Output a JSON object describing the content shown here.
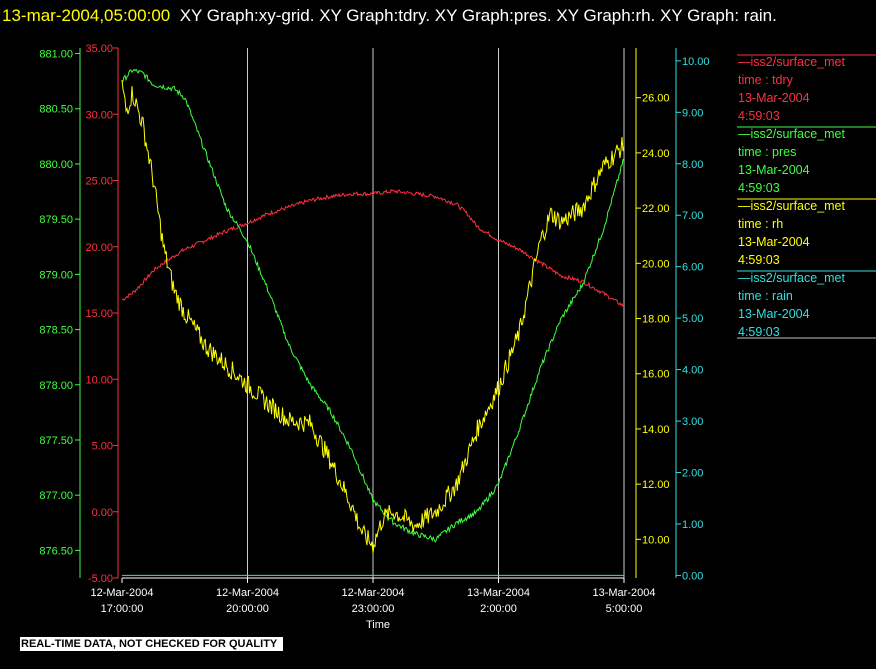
{
  "header": {
    "timestamp": "13-mar-2004,05:00:00",
    "title": "XY Graph:xy-grid.  XY Graph:tdry.  XY Graph:pres.  XY Graph:rh.  XY Graph: rain."
  },
  "footer": {
    "qc_note": "REAL-TIME DATA, NOT CHECKED FOR QUALITY"
  },
  "colors": {
    "tdry": "#ff3040",
    "pres": "#40ff40",
    "rh": "#ffff00",
    "rain": "#30e0e0",
    "grid": "#ffffff"
  },
  "legend": [
    {
      "source": "iss2/surface_met",
      "label": "time : tdry",
      "date": "13-Mar-2004",
      "time": "4:59:03",
      "color": "#ff3040"
    },
    {
      "source": "iss2/surface_met",
      "label": "time : pres",
      "date": "13-Mar-2004",
      "time": "4:59:03",
      "color": "#40ff40"
    },
    {
      "source": "iss2/surface_met",
      "label": "time : rh",
      "date": "13-Mar-2004",
      "time": "4:59:03",
      "color": "#ffff00"
    },
    {
      "source": "iss2/surface_met",
      "label": "time : rain",
      "date": "13-Mar-2004",
      "time": "4:59:03",
      "color": "#30e0e0"
    }
  ],
  "chart_data": {
    "type": "line",
    "xlabel": "Time",
    "x_ticks": [
      {
        "date": "12-Mar-2004",
        "time": "17:00:00",
        "h": 0
      },
      {
        "date": "12-Mar-2004",
        "time": "20:00:00",
        "h": 3
      },
      {
        "date": "12-Mar-2004",
        "time": "23:00:00",
        "h": 6
      },
      {
        "date": "13-Mar-2004",
        "time": "2:00:00",
        "h": 9
      },
      {
        "date": "13-Mar-2004",
        "time": "5:00:00",
        "h": 12
      }
    ],
    "xlim": [
      0,
      12
    ],
    "grid": true,
    "axes": {
      "tdry": {
        "ylim": [
          -5,
          35
        ],
        "ticks": [
          "-5.00",
          "0.00",
          "5.00",
          "10.00",
          "15.00",
          "20.00",
          "25.00",
          "30.00",
          "35.00"
        ],
        "color": "#ff3040"
      },
      "pres": {
        "ylim": [
          876.25,
          881.05
        ],
        "ticks": [
          "876.50",
          "877.00",
          "877.50",
          "878.00",
          "878.50",
          "879.00",
          "879.50",
          "880.00",
          "880.50",
          "881.00"
        ],
        "color": "#40ff40"
      },
      "rh": {
        "ylim": [
          8.6,
          27.8
        ],
        "ticks": [
          "10.00",
          "12.00",
          "14.00",
          "16.00",
          "18.00",
          "20.00",
          "22.00",
          "24.00",
          "26.00"
        ],
        "color": "#ffff00"
      },
      "rain": {
        "ylim": [
          -0.05,
          10.25
        ],
        "ticks": [
          "0.00",
          "1.00",
          "2.00",
          "3.00",
          "4.00",
          "5.00",
          "6.00",
          "7.00",
          "8.00",
          "9.00",
          "10.00"
        ],
        "color": "#30e0e0"
      }
    },
    "series": [
      {
        "name": "tdry",
        "x": [
          0,
          0.25,
          0.5,
          0.75,
          1,
          1.5,
          2,
          2.5,
          3,
          3.5,
          4,
          4.5,
          5,
          5.5,
          6,
          6.5,
          7,
          7.5,
          8,
          8.25,
          8.5,
          9,
          9.5,
          10,
          10.5,
          11,
          11.5,
          12
        ],
        "values": [
          16,
          16.5,
          17.3,
          18.2,
          18.8,
          19.8,
          20.5,
          21.2,
          21.8,
          22.5,
          23,
          23.5,
          23.8,
          24,
          24,
          24.2,
          24,
          23.8,
          23.2,
          22.5,
          21.5,
          20.5,
          19.8,
          18.8,
          17.8,
          17.4,
          16.5,
          15.5
        ]
      },
      {
        "name": "pres",
        "x": [
          0,
          0.25,
          0.5,
          0.75,
          1,
          1.25,
          1.5,
          2,
          2.5,
          3,
          3.5,
          4,
          4.5,
          5,
          5.5,
          6,
          6.5,
          7,
          7.5,
          8,
          8.5,
          9,
          9.5,
          10,
          10.5,
          11,
          11.5,
          12
        ],
        "values": [
          880.75,
          880.85,
          880.82,
          880.72,
          880.7,
          880.68,
          880.6,
          880.1,
          879.6,
          879.3,
          878.85,
          878.35,
          878,
          877.75,
          877.4,
          876.95,
          876.75,
          876.65,
          876.6,
          876.75,
          876.85,
          877.1,
          877.6,
          878.15,
          878.6,
          878.9,
          879.4,
          880.05
        ]
      },
      {
        "name": "rh",
        "x": [
          0,
          0.1,
          0.25,
          0.5,
          0.75,
          1,
          1.25,
          1.5,
          2,
          2.5,
          3,
          3.5,
          4,
          4.5,
          5,
          5.5,
          5.75,
          6,
          6.25,
          6.5,
          7,
          7.5,
          8,
          8.5,
          9,
          9.5,
          10,
          10.25,
          10.5,
          11,
          11.5,
          12
        ],
        "values": [
          26.5,
          25.5,
          26.2,
          25,
          23,
          20.5,
          19,
          18.2,
          17,
          16.3,
          15.6,
          14.9,
          14.3,
          14.2,
          12.8,
          11.2,
          10.2,
          9.8,
          10.8,
          11,
          10.5,
          11,
          12,
          14,
          15.5,
          17.5,
          20.8,
          21.8,
          21.5,
          22,
          23.5,
          24.3
        ]
      },
      {
        "name": "rain",
        "x": [
          0,
          12
        ],
        "values": [
          0,
          0
        ]
      }
    ]
  }
}
